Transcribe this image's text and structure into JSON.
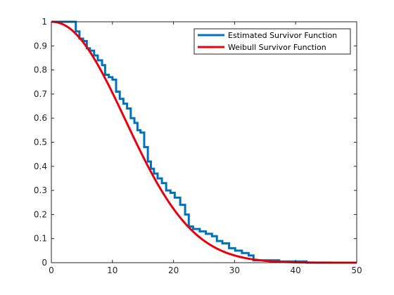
{
  "chart_data": {
    "type": "line",
    "title": "",
    "xlabel": "",
    "ylabel": "",
    "xlim": [
      0,
      50
    ],
    "ylim": [
      0,
      1
    ],
    "x_ticks": [
      "0",
      "10",
      "20",
      "30",
      "40",
      "50"
    ],
    "y_ticks": [
      "0",
      "0.1",
      "0.2",
      "0.3",
      "0.4",
      "0.5",
      "0.6",
      "0.7",
      "0.8",
      "0.9",
      "1"
    ],
    "grid": false,
    "legend_position": "top-right",
    "series": [
      {
        "name": "Estimated Survivor Function",
        "color": "#0072BD",
        "style": "step",
        "x": [
          0,
          4,
          4.6,
          5.2,
          5.8,
          6.3,
          7,
          7.6,
          8.3,
          8.8,
          9.4,
          10,
          10.6,
          11.2,
          11.8,
          12.4,
          13,
          13.6,
          14.1,
          14.6,
          15.2,
          15.8,
          16.3,
          16.8,
          17.4,
          18.1,
          18.8,
          19.5,
          20.2,
          21.1,
          21.9,
          22.5,
          23.2,
          24.3,
          25.3,
          26.3,
          27.1,
          28,
          29.1,
          30.1,
          31.2,
          32.3,
          33.1,
          35.2,
          37.3,
          41.8,
          50
        ],
        "y": [
          1,
          0.96,
          0.93,
          0.92,
          0.89,
          0.88,
          0.86,
          0.84,
          0.82,
          0.78,
          0.77,
          0.76,
          0.71,
          0.68,
          0.66,
          0.64,
          0.6,
          0.58,
          0.55,
          0.54,
          0.48,
          0.42,
          0.39,
          0.37,
          0.35,
          0.33,
          0.3,
          0.29,
          0.27,
          0.24,
          0.2,
          0.15,
          0.14,
          0.13,
          0.12,
          0.11,
          0.09,
          0.08,
          0.06,
          0.05,
          0.04,
          0.03,
          0.01,
          0.01,
          0.005,
          0,
          0
        ]
      },
      {
        "name": "Weibull Survivor Function",
        "color": "#E8000B",
        "style": "smooth",
        "scale": 16.5,
        "shape": 2.1,
        "x": [
          0,
          2,
          4,
          6,
          8,
          10,
          12,
          14,
          16,
          18,
          20,
          22,
          24,
          26,
          28,
          30,
          32,
          34,
          36,
          38,
          40,
          45,
          50
        ],
        "y": [
          1,
          0.988,
          0.948,
          0.882,
          0.796,
          0.696,
          0.591,
          0.487,
          0.389,
          0.302,
          0.227,
          0.166,
          0.118,
          0.082,
          0.055,
          0.036,
          0.023,
          0.014,
          0.008,
          0.005,
          0.003,
          0.001,
          0
        ]
      }
    ]
  }
}
